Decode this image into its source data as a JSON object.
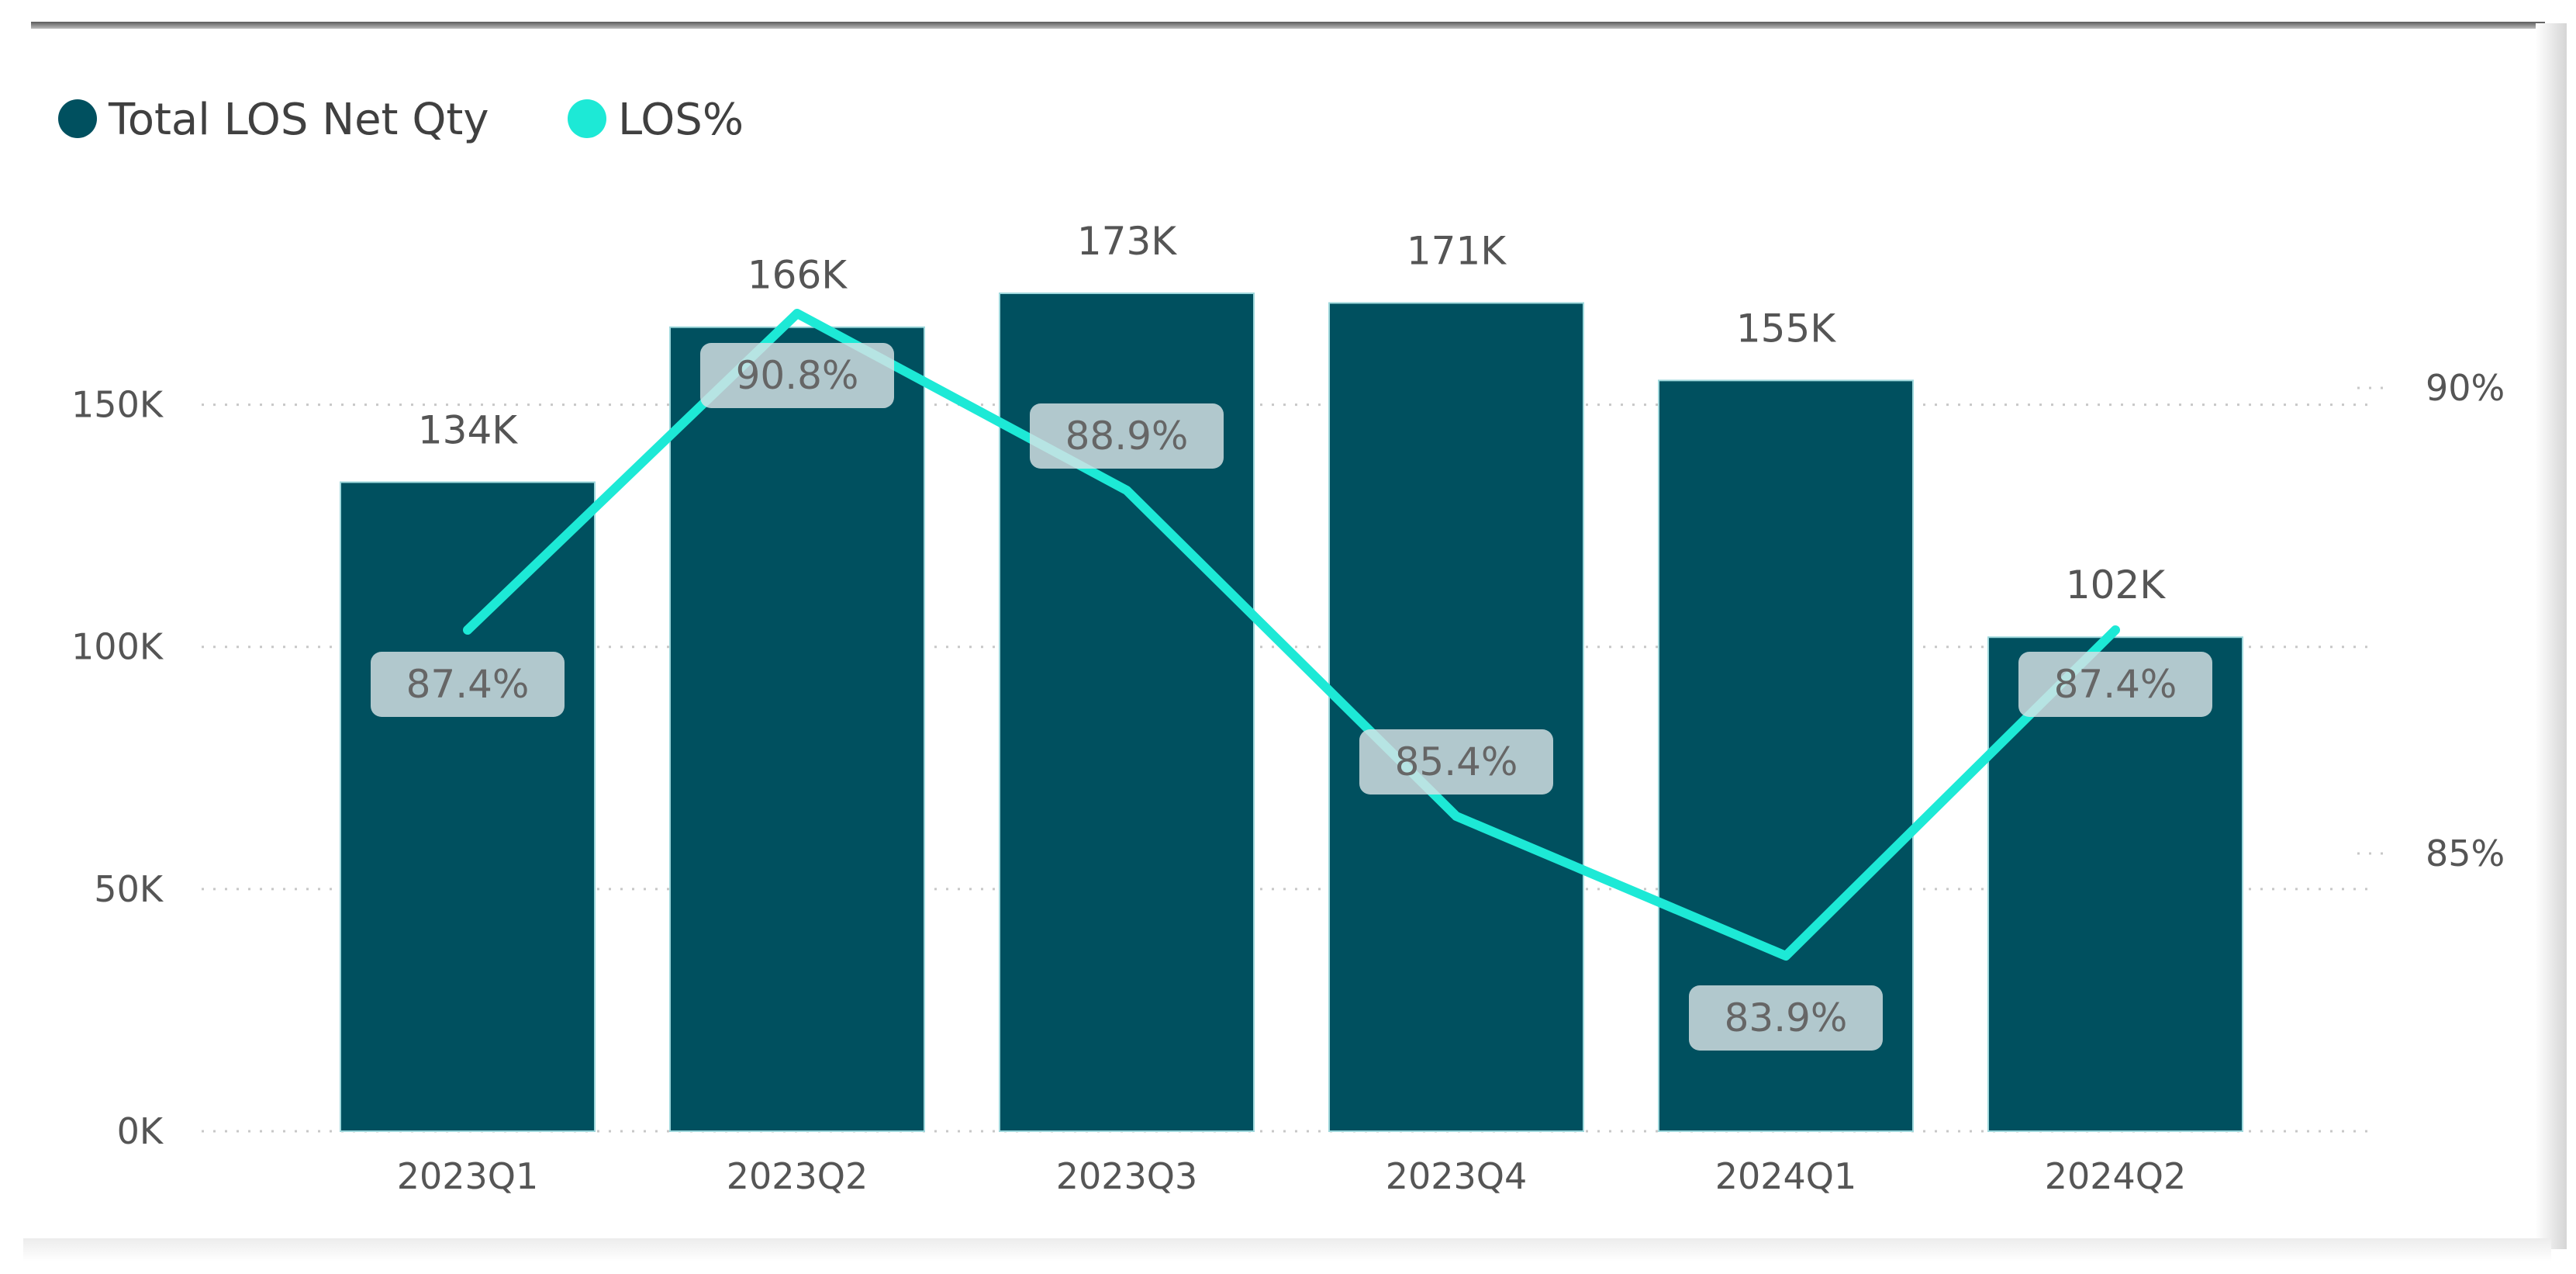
{
  "chart_data": {
    "type": "bar",
    "categories": [
      "2023Q1",
      "2023Q2",
      "2023Q3",
      "2023Q4",
      "2024Q1",
      "2024Q2"
    ],
    "series": [
      {
        "name": "Total LOS Net Qty",
        "chart_type": "bar",
        "axis": "left",
        "values": [
          134000,
          166000,
          173000,
          171000,
          155000,
          102000
        ],
        "labels": [
          "134K",
          "166K",
          "173K",
          "171K",
          "155K",
          "102K"
        ],
        "color": "#00505f"
      },
      {
        "name": "LOS%",
        "chart_type": "line",
        "axis": "right",
        "values": [
          87.4,
          90.8,
          88.9,
          85.4,
          83.9,
          87.4
        ],
        "labels": [
          "87.4%",
          "90.8%",
          "88.9%",
          "85.4%",
          "83.9%",
          "87.4%"
        ],
        "color": "#1de9d6"
      }
    ],
    "left_axis": {
      "ylim": [
        0,
        173000
      ],
      "ticks": [
        0,
        50000,
        100000,
        150000
      ],
      "tick_labels": [
        "0K",
        "50K",
        "100K",
        "150K"
      ]
    },
    "right_axis": {
      "ylim": [
        80.5,
        91.5
      ],
      "ticks": [
        85,
        90
      ],
      "tick_labels": [
        "85%",
        "90%"
      ]
    },
    "grid": true,
    "legend_position": "top-left"
  }
}
